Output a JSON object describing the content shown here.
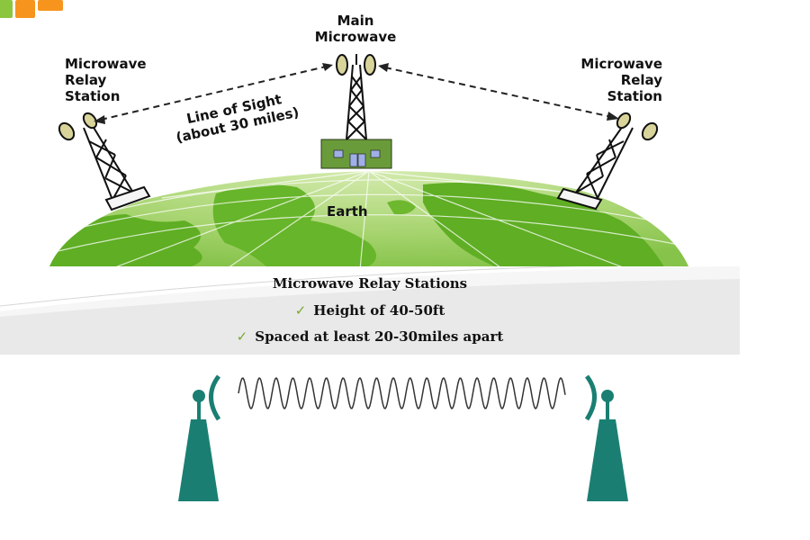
{
  "labels": {
    "main_microwave": [
      "Main",
      "Microwave"
    ],
    "relay_left": [
      "Microwave",
      "Relay",
      "Station"
    ],
    "relay_right": [
      "Microwave",
      "Relay",
      "Station"
    ],
    "line_of_sight": [
      "Line of Sight",
      "(about 30 miles)"
    ],
    "earth": "Earth"
  },
  "text_box": {
    "heading": "Microwave Relay  Stations",
    "items": [
      "Height of 40-50ft",
      "Spaced at least 20-30miles apart"
    ],
    "check_glyph": "✓"
  },
  "colors": {
    "logo_green": "#8cc63f",
    "logo_orange": "#f7941d",
    "earth_green": "#6fb82d",
    "earth_light": "#c7e29c",
    "building": "#6a9b3a",
    "tower_teal": "#1a7f72",
    "band_gray": "#e9e9e9",
    "check_green": "#7aa832"
  }
}
